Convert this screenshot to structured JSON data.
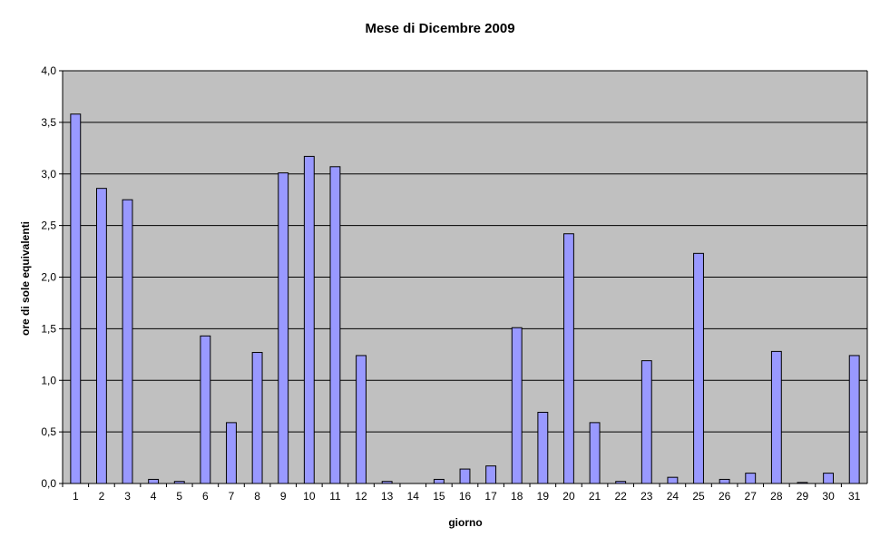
{
  "chart_data": {
    "type": "bar",
    "title": "Mese di Dicembre 2009",
    "xlabel": "giorno",
    "ylabel": "ore di sole equivalenti",
    "categories": [
      "1",
      "2",
      "3",
      "4",
      "5",
      "6",
      "7",
      "8",
      "9",
      "10",
      "11",
      "12",
      "13",
      "14",
      "15",
      "16",
      "17",
      "18",
      "19",
      "20",
      "21",
      "22",
      "23",
      "24",
      "25",
      "26",
      "27",
      "28",
      "29",
      "30",
      "31"
    ],
    "values": [
      3.58,
      2.86,
      2.75,
      0.04,
      0.02,
      1.43,
      0.59,
      1.27,
      3.01,
      3.17,
      3.07,
      1.24,
      0.02,
      0.0,
      0.04,
      0.14,
      0.17,
      1.51,
      0.69,
      2.42,
      0.59,
      0.02,
      1.19,
      0.06,
      2.23,
      0.04,
      0.1,
      1.28,
      0.01,
      0.1,
      1.24
    ],
    "ylim": [
      0,
      4.0
    ],
    "yticks": [
      "0,0",
      "0,5",
      "1,0",
      "1,5",
      "2,0",
      "2,5",
      "3,0",
      "3,5",
      "4,0"
    ],
    "ytick_values": [
      0,
      0.5,
      1.0,
      1.5,
      2.0,
      2.5,
      3.0,
      3.5,
      4.0
    ],
    "grid": true,
    "legend": "none",
    "colors": {
      "bar_fill": "#9999ff",
      "bar_stroke": "#000000",
      "plot_background": "#c0c0c0",
      "gridline": "#000000"
    }
  }
}
